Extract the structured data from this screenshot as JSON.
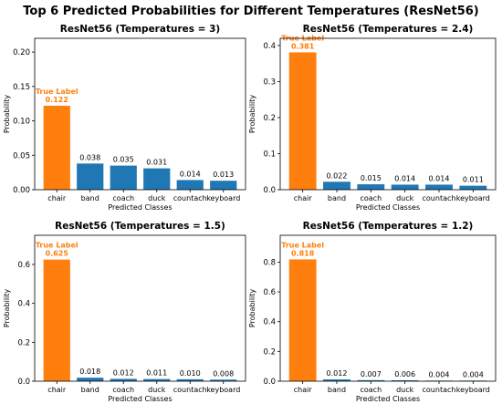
{
  "figure_title": "Top 6 Predicted Probabilities for Different Temperatures (ResNet56)",
  "colors": {
    "true_label": "#ff7f0e",
    "other": "#1f77b4",
    "axis": "#000000"
  },
  "true_label_text": "True Label",
  "chart_data": [
    {
      "type": "bar",
      "title": "ResNet56 (Temperatures  = 3)",
      "xlabel": "Predicted Classes",
      "ylabel": "Probability",
      "categories": [
        "chair",
        "band",
        "coach",
        "duck",
        "countach",
        "keyboard"
      ],
      "values": [
        0.122,
        0.038,
        0.035,
        0.031,
        0.014,
        0.013
      ],
      "value_labels": [
        "0.122",
        "0.038",
        "0.035",
        "0.031",
        "0.014",
        "0.013"
      ],
      "true_label_index": 0,
      "ylim": [
        0,
        0.22
      ],
      "yticks": [
        0.0,
        0.05,
        0.1,
        0.15,
        0.2
      ],
      "ytick_labels": [
        "0.00",
        "0.05",
        "0.10",
        "0.15",
        "0.20"
      ],
      "grid": false
    },
    {
      "type": "bar",
      "title": "ResNet56 (Temperatures  = 2.4)",
      "xlabel": "Predicted Classes",
      "ylabel": "Probability",
      "categories": [
        "chair",
        "band",
        "coach",
        "duck",
        "countach",
        "keyboard"
      ],
      "values": [
        0.381,
        0.022,
        0.015,
        0.014,
        0.014,
        0.011
      ],
      "value_labels": [
        "0.381",
        "0.022",
        "0.015",
        "0.014",
        "0.014",
        "0.011"
      ],
      "true_label_index": 0,
      "ylim": [
        0,
        0.42
      ],
      "yticks": [
        0.0,
        0.1,
        0.2,
        0.3,
        0.4
      ],
      "ytick_labels": [
        "0.0",
        "0.1",
        "0.2",
        "0.3",
        "0.4"
      ],
      "grid": false
    },
    {
      "type": "bar",
      "title": "ResNet56 (Temperatures  = 1.5)",
      "xlabel": "Predicted Classes",
      "ylabel": "Probability",
      "categories": [
        "chair",
        "band",
        "coach",
        "duck",
        "countach",
        "keyboard"
      ],
      "values": [
        0.625,
        0.018,
        0.012,
        0.011,
        0.01,
        0.008
      ],
      "value_labels": [
        "0.625",
        "0.018",
        "0.012",
        "0.011",
        "0.010",
        "0.008"
      ],
      "true_label_index": 0,
      "ylim": [
        0,
        0.75
      ],
      "yticks": [
        0.0,
        0.2,
        0.4,
        0.6
      ],
      "ytick_labels": [
        "0.0",
        "0.2",
        "0.4",
        "0.6"
      ],
      "grid": false
    },
    {
      "type": "bar",
      "title": "ResNet56 (Temperatures  = 1.2)",
      "xlabel": "Predicted Classes",
      "ylabel": "Probability",
      "categories": [
        "chair",
        "band",
        "coach",
        "duck",
        "countach",
        "keyboard"
      ],
      "values": [
        0.818,
        0.012,
        0.007,
        0.006,
        0.004,
        0.004
      ],
      "value_labels": [
        "0.818",
        "0.012",
        "0.007",
        "0.006",
        "0.004",
        "0.004"
      ],
      "true_label_index": 0,
      "ylim": [
        0,
        0.98
      ],
      "yticks": [
        0.0,
        0.2,
        0.4,
        0.6,
        0.8
      ],
      "ytick_labels": [
        "0.0",
        "0.2",
        "0.4",
        "0.6",
        "0.8"
      ],
      "grid": false
    }
  ]
}
